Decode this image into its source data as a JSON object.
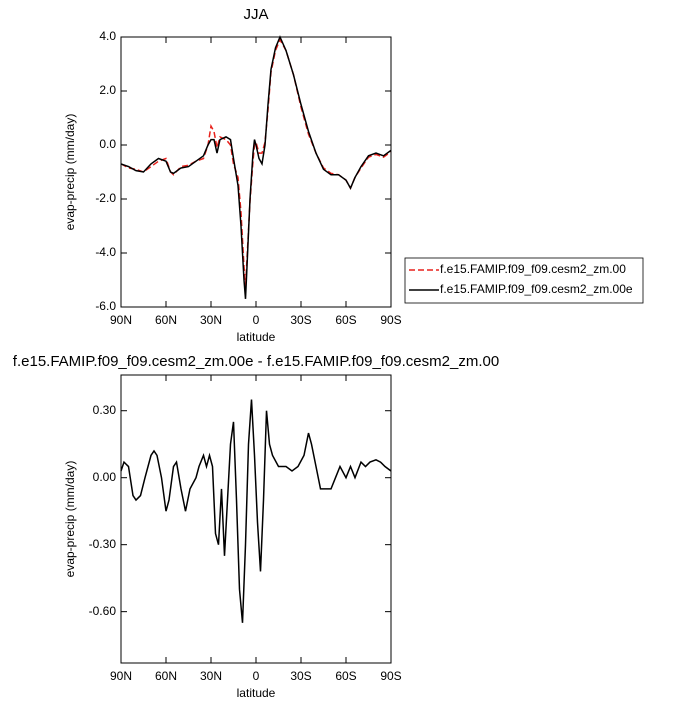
{
  "chart_data": [
    {
      "type": "line",
      "title": "JJA",
      "x_label": "latitude",
      "y_label": "evap-precip (mm/day)",
      "xlim": [
        90,
        -90
      ],
      "xticks": [
        {
          "value": 90,
          "label": "90N"
        },
        {
          "value": 60,
          "label": "60N"
        },
        {
          "value": 30,
          "label": "30N"
        },
        0,
        {
          "value": -30,
          "label": "30S"
        },
        {
          "value": -60,
          "label": "60S"
        },
        {
          "value": -90,
          "label": "90S"
        }
      ],
      "ylim": [
        -6,
        4
      ],
      "yticks": [
        {
          "value": -6,
          "label": "-6.0"
        },
        {
          "value": -4,
          "label": "-4.0"
        },
        {
          "value": -2,
          "label": "-2.0"
        },
        {
          "value": 0,
          "label": "0.0"
        },
        {
          "value": 2,
          "label": "2.0"
        },
        {
          "value": 4,
          "label": "4.0"
        }
      ],
      "legend": "right",
      "x": [
        90,
        85,
        80,
        75,
        70,
        65,
        60,
        57,
        55,
        50,
        45,
        40,
        35,
        32,
        30,
        28,
        26,
        24,
        20,
        17,
        15,
        12,
        10,
        8,
        7,
        6,
        4,
        2,
        1,
        0,
        -2,
        -4,
        -6,
        -8,
        -10,
        -13,
        -16,
        -20,
        -25,
        -30,
        -35,
        -40,
        -45,
        -50,
        -55,
        -60,
        -63,
        -66,
        -70,
        -75,
        -80,
        -85,
        -90
      ],
      "series": [
        {
          "name": "f.e15.FAMIP.f09_f09.cesm2_zm.00",
          "color": "#e8211b",
          "line_style": "dashed",
          "values": [
            -0.7,
            -0.85,
            -0.9,
            -1.0,
            -0.8,
            -0.6,
            -0.5,
            -1.0,
            -1.1,
            -0.8,
            -0.75,
            -0.6,
            -0.5,
            0.0,
            0.7,
            0.5,
            -0.1,
            0.3,
            0.2,
            0.0,
            -0.7,
            -1.2,
            -2.5,
            -4.5,
            -5.3,
            -4.2,
            -2.1,
            -0.6,
            0.0,
            0.1,
            -0.3,
            -0.3,
            0.1,
            1.3,
            2.7,
            3.5,
            3.9,
            3.5,
            2.6,
            1.4,
            0.4,
            -0.3,
            -0.85,
            -1.05,
            -1.1,
            -1.3,
            -1.6,
            -1.2,
            -0.85,
            -0.45,
            -0.35,
            -0.45,
            -0.25
          ]
        },
        {
          "name": "f.e15.FAMIP.f09_f09.cesm2_zm.00e",
          "color": "#000000",
          "line_style": "solid",
          "values": [
            -0.7,
            -0.8,
            -0.95,
            -1.0,
            -0.7,
            -0.5,
            -0.6,
            -1.0,
            -1.05,
            -0.85,
            -0.8,
            -0.6,
            -0.4,
            0.0,
            0.2,
            0.2,
            -0.3,
            0.2,
            0.3,
            0.2,
            -0.5,
            -1.5,
            -3.0,
            -5.0,
            -5.7,
            -4.5,
            -2.0,
            -0.3,
            0.2,
            0.0,
            -0.5,
            -0.7,
            0.0,
            1.5,
            2.8,
            3.6,
            4.0,
            3.5,
            2.6,
            1.5,
            0.5,
            -0.3,
            -0.9,
            -1.1,
            -1.1,
            -1.3,
            -1.6,
            -1.2,
            -0.8,
            -0.4,
            -0.3,
            -0.4,
            -0.2
          ]
        }
      ]
    },
    {
      "type": "line",
      "title": "f.e15.FAMIP.f09_f09.cesm2_zm.00e - f.e15.FAMIP.f09_f09.cesm2_zm.00",
      "x_label": "latitude",
      "y_label": "evap-precip (mm/day)",
      "xlim": [
        90,
        -90
      ],
      "xticks": [
        {
          "value": 90,
          "label": "90N"
        },
        {
          "value": 60,
          "label": "60N"
        },
        {
          "value": 30,
          "label": "30N"
        },
        0,
        {
          "value": -30,
          "label": "30S"
        },
        {
          "value": -60,
          "label": "60S"
        },
        {
          "value": -90,
          "label": "90S"
        }
      ],
      "ylim": [
        -0.83,
        0.46
      ],
      "yticks": [
        {
          "value": -0.6,
          "label": "-0.60"
        },
        {
          "value": -0.3,
          "label": "-0.30"
        },
        {
          "value": 0,
          "label": "0.00"
        },
        {
          "value": 0.3,
          "label": "0.30"
        }
      ],
      "color": "#000000",
      "x": [
        90,
        88,
        85,
        82,
        80,
        77,
        74,
        70,
        68,
        66,
        63,
        60,
        58,
        55,
        53,
        50,
        47,
        44,
        40,
        38,
        35,
        33,
        31,
        29,
        27,
        25,
        23,
        21,
        19,
        17,
        15,
        13,
        11,
        9,
        7,
        5,
        3,
        1,
        -1,
        -3,
        -5,
        -7,
        -9,
        -11,
        -15,
        -20,
        -24,
        -28,
        -32,
        -35,
        -37,
        -40,
        -43,
        -46,
        -50,
        -53,
        -56,
        -60,
        -63,
        -66,
        -70,
        -73,
        -76,
        -80,
        -83,
        -86,
        -90
      ],
      "values": [
        0.03,
        0.07,
        0.05,
        -0.08,
        -0.1,
        -0.08,
        0.0,
        0.1,
        0.12,
        0.1,
        0.0,
        -0.15,
        -0.1,
        0.05,
        0.07,
        -0.05,
        -0.15,
        -0.05,
        0.0,
        0.05,
        0.1,
        0.05,
        0.1,
        0.05,
        -0.25,
        -0.3,
        -0.05,
        -0.35,
        -0.1,
        0.15,
        0.25,
        -0.1,
        -0.5,
        -0.65,
        -0.3,
        0.15,
        0.35,
        0.1,
        -0.2,
        -0.42,
        -0.1,
        0.3,
        0.15,
        0.1,
        0.05,
        0.05,
        0.03,
        0.05,
        0.1,
        0.2,
        0.15,
        0.05,
        -0.05,
        -0.05,
        -0.05,
        0.0,
        0.05,
        0.0,
        0.05,
        0.0,
        0.07,
        0.05,
        0.07,
        0.08,
        0.07,
        0.05,
        0.03
      ]
    }
  ]
}
